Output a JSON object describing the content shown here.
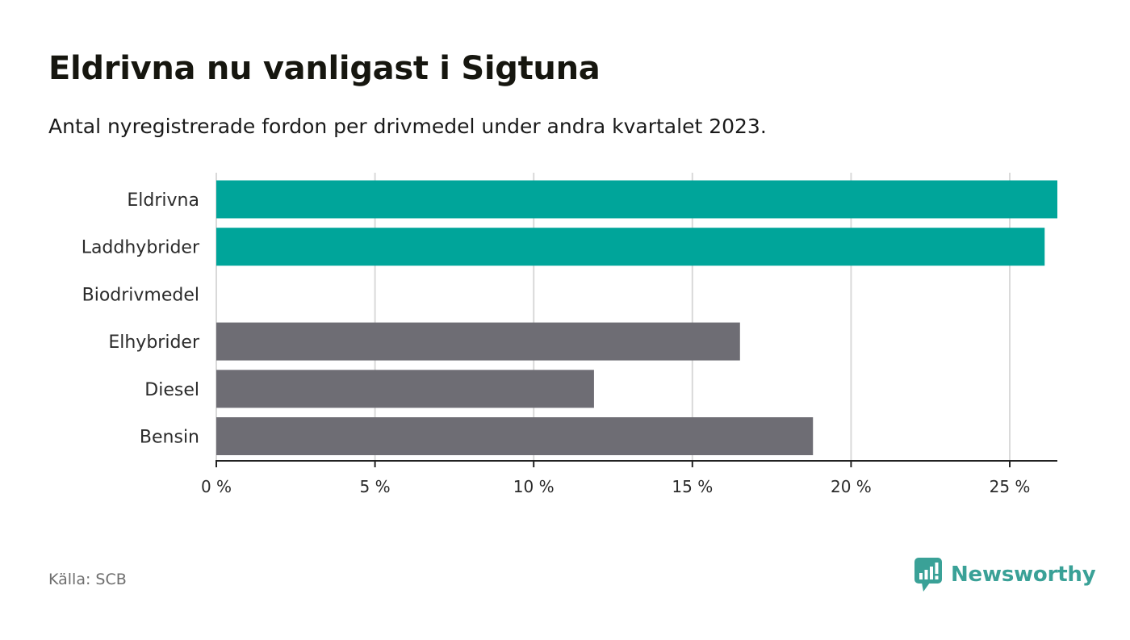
{
  "header": {
    "title": "Eldrivna nu vanligast i Sigtuna",
    "subtitle": "Antal nyregistrerade fordon per drivmedel under andra kvartalet 2023."
  },
  "chart_data": {
    "type": "bar",
    "orientation": "horizontal",
    "title": "Eldrivna nu vanligast i Sigtuna",
    "subtitle": "Antal nyregistrerade fordon per drivmedel under andra kvartalet 2023.",
    "categories": [
      "Eldrivna",
      "Laddhybrider",
      "Biodrivmedel",
      "Elhybrider",
      "Diesel",
      "Bensin"
    ],
    "values": [
      26.5,
      26.1,
      0,
      16.5,
      11.9,
      18.8
    ],
    "bar_colors": [
      "#00a59a",
      "#00a59a",
      "#00a59a",
      "#6e6d74",
      "#6e6d74",
      "#6e6d74"
    ],
    "xlim": [
      0,
      26.5
    ],
    "xticks": [
      0,
      5,
      10,
      15,
      20,
      25
    ],
    "xtick_labels": [
      "0 %",
      "5 %",
      "10 %",
      "15 %",
      "20 %",
      "25 %"
    ],
    "xlabel": "",
    "ylabel": "",
    "grid": "vertical"
  },
  "footer": {
    "source": "Källa: SCB",
    "brand": "Newsworthy",
    "brand_color": "#3aa197"
  },
  "colors": {
    "highlight": "#00a59a",
    "neutral": "#6e6d74",
    "grid": "#d9d9d9",
    "axis": "#222222"
  }
}
